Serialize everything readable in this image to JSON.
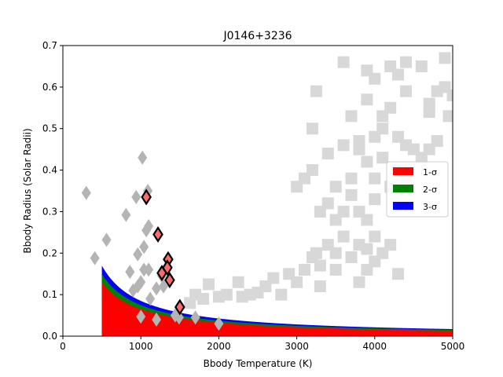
{
  "chart_data": {
    "type": "scatter",
    "title": "J0146+3236",
    "xlabel": "Bbody Temperature (K)",
    "ylabel": "Bbody Radius (Solar Radii)",
    "xlim": [
      0,
      5000
    ],
    "ylim": [
      0,
      0.7
    ],
    "xticks": [
      0,
      1000,
      2000,
      3000,
      4000,
      5000
    ],
    "yticks": [
      0.0,
      0.1,
      0.2,
      0.3,
      0.4,
      0.5,
      0.6,
      0.7
    ],
    "grid": false,
    "legend_position": "center-right",
    "bands": [
      {
        "name": "1-σ",
        "color": "#ff0000",
        "t_min": 500,
        "t_max": 5000,
        "radius_scale": 65
      },
      {
        "name": "2-σ",
        "color": "#008000",
        "t_min": 500,
        "t_max": 5000,
        "radius_scale": 75
      },
      {
        "name": "3-σ",
        "color": "#0000ff",
        "t_min": 500,
        "t_max": 5000,
        "radius_scale": 85
      }
    ],
    "band_order": [
      "3-σ",
      "2-σ",
      "1-σ"
    ],
    "highlight_points": {
      "marker": "diamond",
      "color": "#ff6b6b",
      "edge_color": "#000000",
      "points": [
        [
          1070,
          0.335
        ],
        [
          1220,
          0.245
        ],
        [
          1350,
          0.185
        ],
        [
          1270,
          0.152
        ],
        [
          1340,
          0.165
        ],
        [
          1370,
          0.135
        ],
        [
          1500,
          0.07
        ]
      ]
    },
    "gray_diamonds": {
      "marker": "diamond",
      "color": "#b4b4b4",
      "points": [
        [
          300,
          0.345
        ],
        [
          410,
          0.188
        ],
        [
          560,
          0.232
        ],
        [
          810,
          0.292
        ],
        [
          860,
          0.155
        ],
        [
          940,
          0.335
        ],
        [
          1020,
          0.43
        ],
        [
          1090,
          0.35
        ],
        [
          960,
          0.197
        ],
        [
          1040,
          0.215
        ],
        [
          1070,
          0.255
        ],
        [
          1100,
          0.265
        ],
        [
          1040,
          0.16
        ],
        [
          1100,
          0.16
        ],
        [
          960,
          0.12
        ],
        [
          1000,
          0.13
        ],
        [
          900,
          0.11
        ],
        [
          1000,
          0.047
        ],
        [
          1120,
          0.09
        ],
        [
          1200,
          0.04
        ],
        [
          1200,
          0.115
        ],
        [
          1270,
          0.145
        ],
        [
          1290,
          0.12
        ],
        [
          1440,
          0.05
        ],
        [
          1490,
          0.045
        ],
        [
          1700,
          0.045
        ],
        [
          2000,
          0.03
        ]
      ]
    },
    "light_squares": {
      "marker": "square",
      "color": "#d8d8d8",
      "points": [
        [
          1630,
          0.08
        ],
        [
          1700,
          0.1
        ],
        [
          1800,
          0.09
        ],
        [
          1870,
          0.125
        ],
        [
          2000,
          0.095
        ],
        [
          2100,
          0.1
        ],
        [
          2250,
          0.13
        ],
        [
          2300,
          0.095
        ],
        [
          2400,
          0.1
        ],
        [
          2500,
          0.105
        ],
        [
          2600,
          0.12
        ],
        [
          2700,
          0.14
        ],
        [
          2800,
          0.1
        ],
        [
          2900,
          0.15
        ],
        [
          3000,
          0.13
        ],
        [
          3100,
          0.16
        ],
        [
          3200,
          0.19
        ],
        [
          3250,
          0.2
        ],
        [
          3300,
          0.17
        ],
        [
          3400,
          0.22
        ],
        [
          3500,
          0.2
        ],
        [
          3600,
          0.24
        ],
        [
          3700,
          0.19
        ],
        [
          3800,
          0.22
        ],
        [
          3900,
          0.21
        ],
        [
          4000,
          0.18
        ],
        [
          4100,
          0.2
        ],
        [
          3300,
          0.3
        ],
        [
          3400,
          0.32
        ],
        [
          3500,
          0.28
        ],
        [
          3600,
          0.3
        ],
        [
          3700,
          0.34
        ],
        [
          3800,
          0.3
        ],
        [
          3900,
          0.28
        ],
        [
          4000,
          0.33
        ],
        [
          4200,
          0.36
        ],
        [
          4300,
          0.4
        ],
        [
          4400,
          0.38
        ],
        [
          4500,
          0.45
        ],
        [
          4600,
          0.43
        ],
        [
          4700,
          0.45
        ],
        [
          4800,
          0.47
        ],
        [
          3000,
          0.36
        ],
        [
          3100,
          0.38
        ],
        [
          3200,
          0.4
        ],
        [
          3400,
          0.44
        ],
        [
          3600,
          0.46
        ],
        [
          3800,
          0.47
        ],
        [
          4000,
          0.48
        ],
        [
          4100,
          0.5
        ],
        [
          3200,
          0.5
        ],
        [
          3250,
          0.59
        ],
        [
          3600,
          0.66
        ],
        [
          3900,
          0.57
        ],
        [
          4000,
          0.62
        ],
        [
          3900,
          0.64
        ],
        [
          4100,
          0.53
        ],
        [
          4200,
          0.55
        ],
        [
          3700,
          0.53
        ],
        [
          4400,
          0.59
        ],
        [
          4600,
          0.65
        ],
        [
          4900,
          0.67
        ],
        [
          4700,
          0.56
        ],
        [
          4800,
          0.59
        ],
        [
          4900,
          0.6
        ],
        [
          5000,
          0.58
        ],
        [
          4950,
          0.53
        ],
        [
          4700,
          0.54
        ],
        [
          4300,
          0.63
        ],
        [
          4200,
          0.65
        ],
        [
          4400,
          0.66
        ],
        [
          3800,
          0.45
        ],
        [
          3900,
          0.42
        ],
        [
          4300,
          0.48
        ],
        [
          4400,
          0.46
        ],
        [
          3500,
          0.36
        ],
        [
          3700,
          0.38
        ],
        [
          4000,
          0.38
        ],
        [
          4100,
          0.43
        ],
        [
          4000,
          0.24
        ],
        [
          3900,
          0.16
        ],
        [
          3800,
          0.13
        ],
        [
          4200,
          0.22
        ],
        [
          4300,
          0.15
        ],
        [
          3300,
          0.12
        ],
        [
          3500,
          0.16
        ]
      ]
    }
  }
}
